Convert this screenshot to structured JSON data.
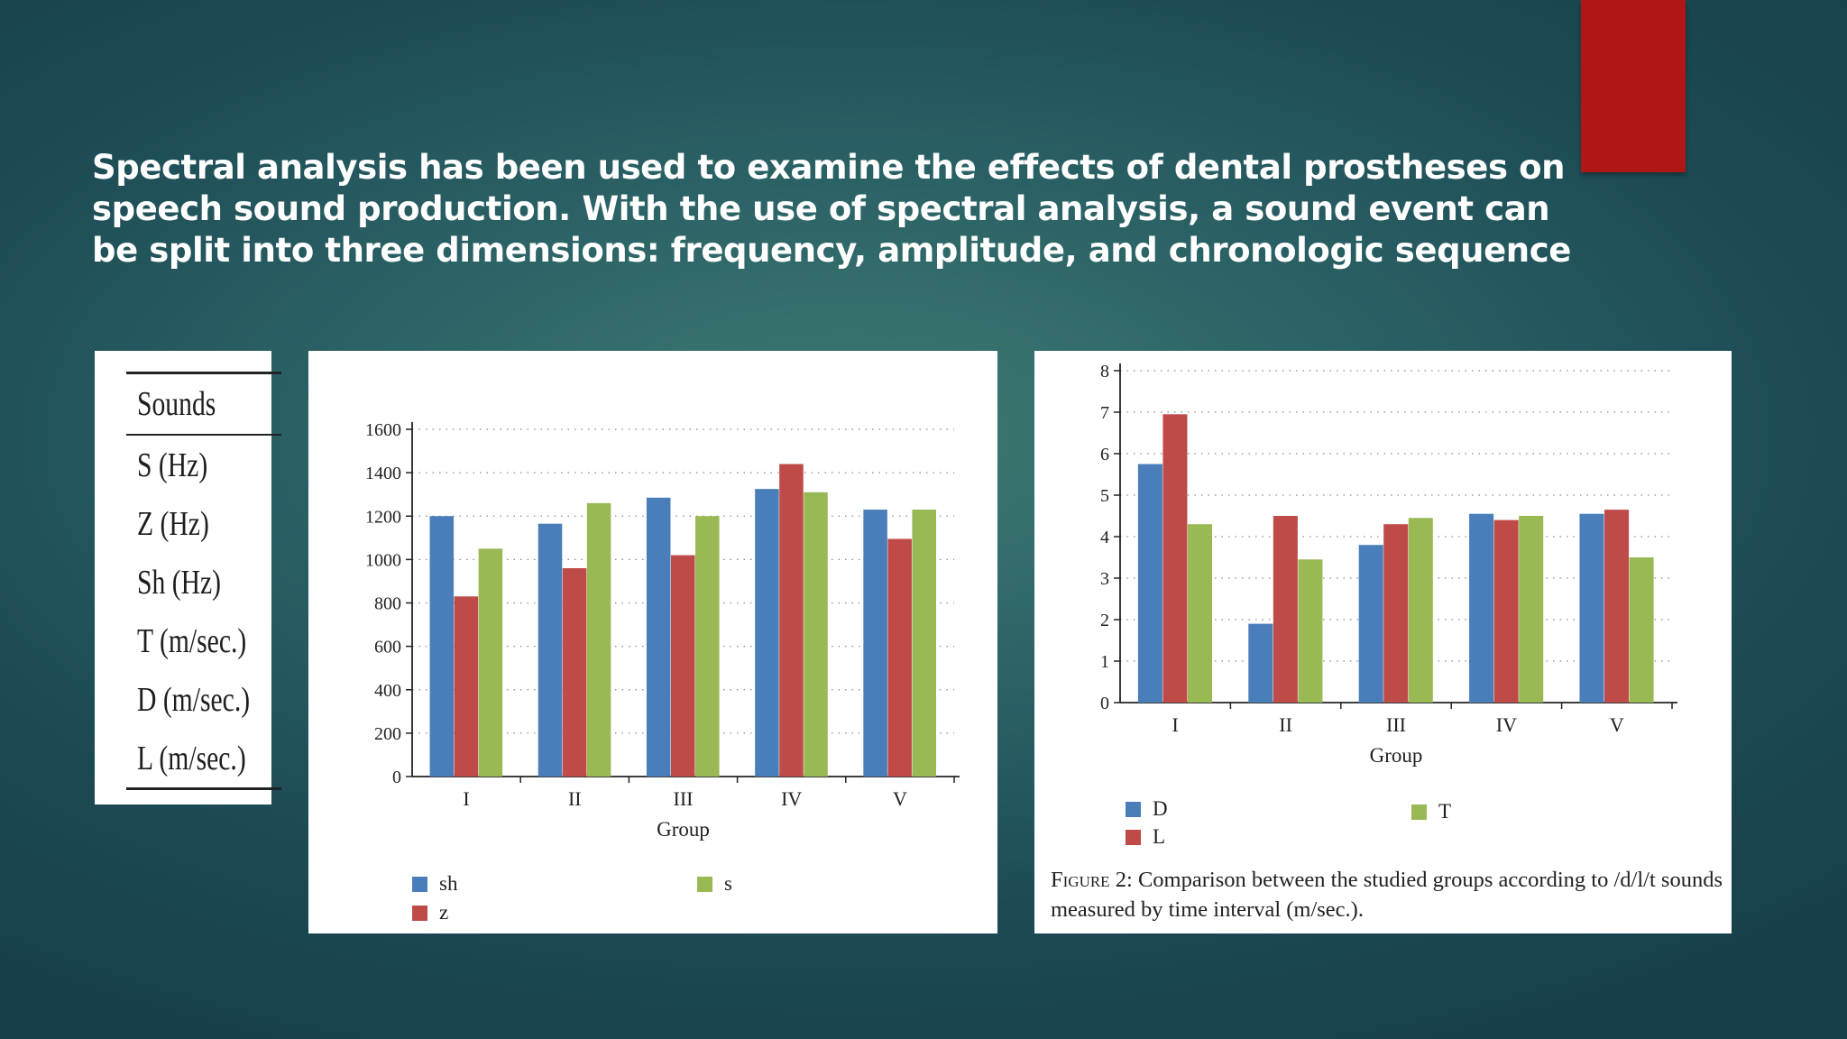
{
  "slide": {
    "heading": "Spectral analysis has been used to examine the effects of dental prostheses on speech sound production. With the use of spectral analysis, a sound event can be split into three dimensions: frequency, amplitude, and chronologic sequence",
    "accent_color": "#b01616"
  },
  "sounds_table": {
    "header": "Sounds",
    "rows": [
      "S (Hz)",
      "Z (Hz)",
      "Sh (Hz)",
      "T (m/sec.)",
      "D (m/sec.)",
      "L (m/sec.)"
    ]
  },
  "figure2": {
    "label": "Figure 2:",
    "text": "Comparison between the studied groups according to /d/l/t sounds measured by time interval (m/sec.)."
  },
  "chart_data": [
    {
      "type": "bar",
      "categories": [
        "I",
        "II",
        "III",
        "IV",
        "V"
      ],
      "xlabel": "Group",
      "ylabel": "",
      "ylim": [
        0,
        1600
      ],
      "yticks": [
        0,
        200,
        400,
        600,
        800,
        1000,
        1200,
        1400,
        1600
      ],
      "grid": "dotted horizontal",
      "legend": "bottom",
      "series": [
        {
          "name": "sh",
          "color": "#4a7ebb",
          "values": [
            1200,
            1165,
            1285,
            1325,
            1230
          ]
        },
        {
          "name": "z",
          "color": "#be4b48",
          "values": [
            830,
            960,
            1020,
            1440,
            1095
          ]
        },
        {
          "name": "s",
          "color": "#98b954",
          "values": [
            1050,
            1260,
            1200,
            1310,
            1230
          ]
        }
      ]
    },
    {
      "type": "bar",
      "categories": [
        "I",
        "II",
        "III",
        "IV",
        "V"
      ],
      "xlabel": "Group",
      "ylabel": "",
      "ylim": [
        0,
        8
      ],
      "yticks": [
        0,
        1,
        2,
        3,
        4,
        5,
        6,
        7,
        8
      ],
      "grid": "dotted horizontal",
      "legend": "bottom",
      "series": [
        {
          "name": "D",
          "color": "#4a7ebb",
          "values": [
            5.75,
            1.9,
            3.8,
            4.55,
            4.55
          ]
        },
        {
          "name": "L",
          "color": "#be4b48",
          "values": [
            6.95,
            4.5,
            4.3,
            4.4,
            4.65
          ]
        },
        {
          "name": "T",
          "color": "#98b954",
          "values": [
            4.3,
            3.45,
            4.45,
            4.5,
            3.5
          ]
        }
      ]
    }
  ]
}
